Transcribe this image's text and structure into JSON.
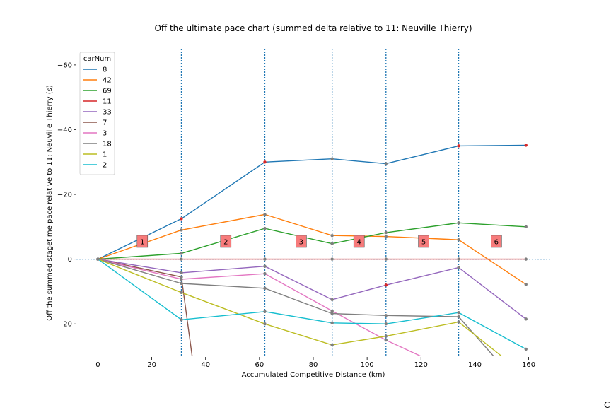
{
  "chart_data": {
    "type": "line",
    "title": "Off the ultimate pace chart (summed delta relative to 11: Neuville Thierry)",
    "xlabel": "Accumulated Competitive Distance (km)",
    "ylabel": "Off the summed stagetime pace relative to 11: Neuville Thierry (s)",
    "xlim": [
      -8,
      168
    ],
    "ylim": [
      30,
      -65
    ],
    "y_inverted": true,
    "x_ticks": [
      0,
      20,
      40,
      60,
      80,
      100,
      120,
      140,
      160
    ],
    "x_tick_labels": [
      "0",
      "20",
      "40",
      "60",
      "80",
      "100",
      "120",
      "140",
      "160"
    ],
    "y_ticks": [
      -60,
      -40,
      -20,
      0,
      20
    ],
    "y_tick_labels": [
      "−60",
      "−40",
      "−20",
      "0",
      "20"
    ],
    "stage_boundaries": [
      31,
      62,
      87,
      107,
      134
    ],
    "stages": [
      {
        "label": "1",
        "x": 16.5,
        "y": -5.5
      },
      {
        "label": "2",
        "x": 47.5,
        "y": -5.5
      },
      {
        "label": "3",
        "x": 75.5,
        "y": -5.5
      },
      {
        "label": "4",
        "x": 97,
        "y": -5.5
      },
      {
        "label": "5",
        "x": 121,
        "y": -5.5
      },
      {
        "label": "6",
        "x": 148,
        "y": -5.5
      }
    ],
    "legend_title": "carNum",
    "legend_position": "upper-left",
    "series": [
      {
        "name": "8",
        "color": "#1f77b4",
        "x": [
          0,
          31,
          62,
          87,
          107,
          134,
          159
        ],
        "y": [
          0,
          -12.5,
          -30,
          -31,
          -29.5,
          -35,
          -35.2
        ],
        "markers": [
          "#7f7f7f",
          "#d62728",
          "#d62728",
          "#7f7f7f",
          "#7f7f7f",
          "#d62728",
          "#d62728"
        ]
      },
      {
        "name": "42",
        "color": "#ff7f0e",
        "x": [
          0,
          31,
          62,
          87,
          107,
          134,
          159
        ],
        "y": [
          0,
          -9,
          -13.8,
          -7.3,
          -7,
          -6,
          7.8
        ],
        "markers": [
          "#7f7f7f",
          "#7f7f7f",
          "#7f7f7f",
          "#7f7f7f",
          "#7f7f7f",
          "#7f7f7f",
          "#7f7f7f"
        ]
      },
      {
        "name": "69",
        "color": "#2ca02c",
        "x": [
          0,
          31,
          62,
          87,
          107,
          134,
          159
        ],
        "y": [
          0,
          -1.8,
          -9.5,
          -4.8,
          -8.2,
          -11.2,
          -10
        ],
        "markers": [
          "#7f7f7f",
          "#7f7f7f",
          "#7f7f7f",
          "#7f7f7f",
          "#7f7f7f",
          "#7f7f7f",
          "#7f7f7f"
        ]
      },
      {
        "name": "11",
        "color": "#d62728",
        "x": [
          0,
          31,
          62,
          87,
          107,
          134,
          159
        ],
        "y": [
          0,
          0,
          0,
          0,
          0,
          0,
          0
        ],
        "markers": [
          "#7f7f7f",
          "#7f7f7f",
          "#7f7f7f",
          "#7f7f7f",
          "#7f7f7f",
          "#7f7f7f",
          "#7f7f7f"
        ]
      },
      {
        "name": "33",
        "color": "#9467bd",
        "x": [
          0,
          31,
          62,
          87,
          107,
          134,
          159
        ],
        "y": [
          0,
          4.2,
          2.2,
          12.5,
          8,
          2.6,
          18.5
        ],
        "markers": [
          "#7f7f7f",
          "#7f7f7f",
          "#7f7f7f",
          "#7f7f7f",
          "#d62728",
          "#7f7f7f",
          "#7f7f7f"
        ]
      },
      {
        "name": "7",
        "color": "#8c564b",
        "x": [
          0,
          31,
          35
        ],
        "y": [
          0,
          5.5,
          30
        ],
        "markers": [
          "#7f7f7f",
          "#7f7f7f",
          null
        ]
      },
      {
        "name": "3",
        "color": "#e377c2",
        "x": [
          0,
          31,
          62,
          87,
          107,
          120
        ],
        "y": [
          0,
          6.2,
          4.5,
          16,
          25,
          30
        ],
        "markers": [
          "#7f7f7f",
          "#7f7f7f",
          "#7f7f7f",
          "#7f7f7f",
          "#7f7f7f",
          null
        ]
      },
      {
        "name": "18",
        "color": "#7f7f7f",
        "x": [
          0,
          31,
          62,
          87,
          107,
          134,
          147
        ],
        "y": [
          0,
          7.5,
          9,
          16.8,
          17.4,
          17.8,
          30
        ],
        "markers": [
          "#7f7f7f",
          "#7f7f7f",
          "#7f7f7f",
          "#7f7f7f",
          "#7f7f7f",
          "#7f7f7f",
          null
        ]
      },
      {
        "name": "1",
        "color": "#bcbd22",
        "x": [
          0,
          31,
          62,
          87,
          107,
          134,
          150
        ],
        "y": [
          0,
          10.3,
          20,
          26.5,
          23.8,
          19.4,
          30
        ],
        "markers": [
          "#7f7f7f",
          "#7f7f7f",
          "#7f7f7f",
          "#7f7f7f",
          "#7f7f7f",
          "#7f7f7f",
          null
        ]
      },
      {
        "name": "2",
        "color": "#17becf",
        "x": [
          0,
          31,
          62,
          87,
          107,
          134,
          159
        ],
        "y": [
          0,
          18.7,
          16.2,
          19.7,
          20,
          16.5,
          27.8
        ],
        "markers": [
          "#7f7f7f",
          "#7f7f7f",
          "#7f7f7f",
          "#7f7f7f",
          "#7f7f7f",
          "#7f7f7f",
          "#7f7f7f"
        ]
      }
    ]
  },
  "page": {
    "corner_glyph": "C"
  }
}
